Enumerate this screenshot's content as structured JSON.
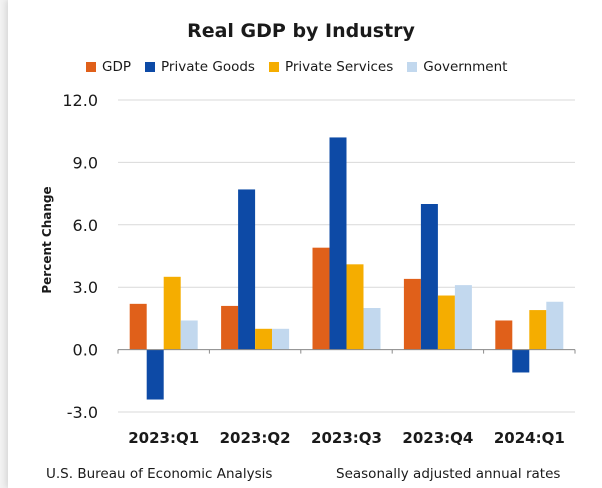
{
  "chart_data": {
    "type": "bar",
    "title": "Real GDP by Industry",
    "xlabel": "",
    "ylabel": "Percent Change",
    "categories": [
      "2023:Q1",
      "2023:Q2",
      "2023:Q3",
      "2023:Q4",
      "2024:Q1"
    ],
    "series": [
      {
        "name": "GDP",
        "color": "#e0601a",
        "values": [
          2.2,
          2.1,
          4.9,
          3.4,
          1.4
        ]
      },
      {
        "name": "Private Goods",
        "color": "#0d4aa6",
        "values": [
          -2.4,
          7.7,
          10.2,
          7.0,
          -1.1
        ]
      },
      {
        "name": "Private Services",
        "color": "#f5ad00",
        "values": [
          3.5,
          1.0,
          4.1,
          2.6,
          1.9
        ]
      },
      {
        "name": "Government",
        "color": "#c2d8ee",
        "values": [
          1.4,
          1.0,
          2.0,
          3.1,
          2.3
        ]
      }
    ],
    "ylim": [
      -3.0,
      12.0
    ],
    "yticks": [
      "12.0",
      "9.0",
      "6.0",
      "3.0",
      "0.0",
      "-3.0"
    ],
    "ytick_values": [
      12,
      9,
      6,
      3,
      0,
      -3
    ],
    "grid": true,
    "legend": "top"
  },
  "footer": {
    "source": "U.S. Bureau of Economic Analysis",
    "note": "Seasonally adjusted annual rates"
  }
}
